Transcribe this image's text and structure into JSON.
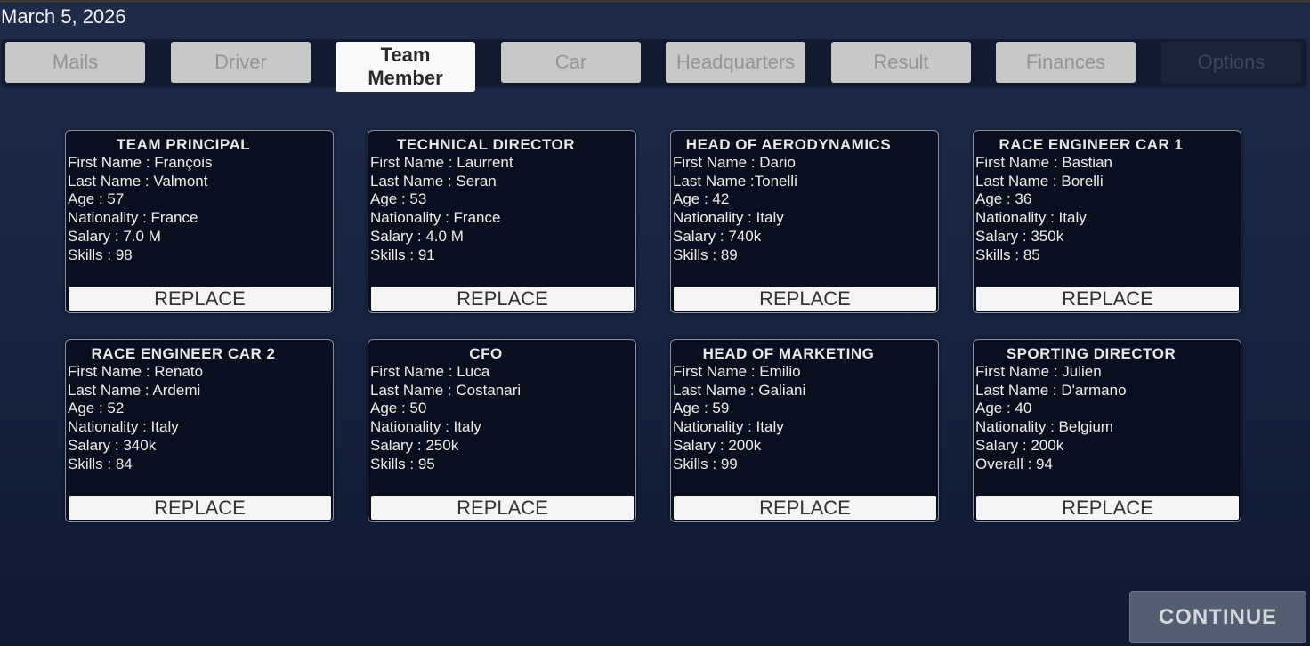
{
  "date": "March 5, 2026",
  "tabs": [
    {
      "label": "Mails",
      "state": "inactive"
    },
    {
      "label": "Driver",
      "state": "inactive"
    },
    {
      "label": "Team Member",
      "state": "active"
    },
    {
      "label": "Car",
      "state": "inactive"
    },
    {
      "label": "Headquarters",
      "state": "inactive"
    },
    {
      "label": "Result",
      "state": "inactive"
    },
    {
      "label": "Finances",
      "state": "inactive"
    },
    {
      "label": "Options",
      "state": "disabled"
    }
  ],
  "cards": [
    {
      "title": "TEAM PRINCIPAL",
      "lines": [
        "First Name : François",
        "Last Name : Valmont",
        "Age : 57",
        "Nationality : France",
        "Salary : 7.0 M",
        "Skills : 98"
      ],
      "button": "REPLACE"
    },
    {
      "title": "TECHNICAL DIRECTOR",
      "lines": [
        "First Name : Laurrent",
        "Last Name : Seran",
        "Age : 53",
        "Nationality : France",
        "Salary : 4.0 M",
        "Skills : 91"
      ],
      "button": "REPLACE"
    },
    {
      "title": "HEAD OF AERODYNAMICS",
      "lines": [
        "First Name : Dario",
        "Last Name :Tonelli",
        "Age : 42",
        "Nationality : Italy",
        "Salary : 740k",
        "Skills : 89"
      ],
      "button": "REPLACE"
    },
    {
      "title": "RACE ENGINEER CAR 1",
      "lines": [
        "First Name : Bastian",
        "Last Name : Borelli",
        "Age : 36",
        "Nationality : Italy",
        "Salary : 350k",
        "Skills : 85"
      ],
      "button": "REPLACE"
    },
    {
      "title": "RACE ENGINEER CAR 2",
      "lines": [
        "First Name : Renato",
        "Last Name : Ardemi",
        "Age : 52",
        "Nationality : Italy",
        "Salary : 340k",
        "Skills : 84"
      ],
      "button": "REPLACE"
    },
    {
      "title": "CFO",
      "lines": [
        "First Name : Luca",
        "Last Name : Costanari",
        "Age : 50",
        "Nationality : Italy",
        "Salary : 250k",
        "Skills : 95"
      ],
      "button": "REPLACE"
    },
    {
      "title": "HEAD OF MARKETING",
      "lines": [
        "First Name : Emilio",
        "Last Name : Galiani",
        "Age : 59",
        "Nationality : Italy",
        "Salary : 200k",
        "Skills : 99"
      ],
      "button": "REPLACE"
    },
    {
      "title": "SPORTING DIRECTOR",
      "lines": [
        "First Name : Julien",
        "Last Name : D'armano",
        "Age : 40",
        "Nationality : Belgium",
        "Salary : 200k",
        "Overall : 94"
      ],
      "button": "REPLACE"
    }
  ],
  "continue_label": "CONTINUE"
}
